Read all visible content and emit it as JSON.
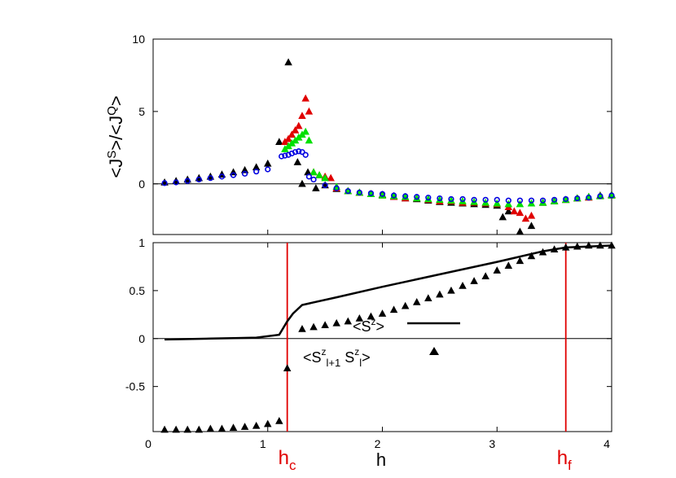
{
  "chart_data": [
    {
      "panel": "top",
      "type": "scatter",
      "ylabel": "<J^S>/<J^Q>",
      "xlim": [
        0,
        4
      ],
      "ylim": [
        -3.5,
        10
      ],
      "yticks": [
        0,
        5,
        10
      ],
      "series": [
        {
          "color": "#000000",
          "marker": "triangle",
          "points": [
            [
              0.1,
              0.1
            ],
            [
              0.2,
              0.2
            ],
            [
              0.3,
              0.3
            ],
            [
              0.4,
              0.4
            ],
            [
              0.5,
              0.5
            ],
            [
              0.6,
              0.65
            ],
            [
              0.7,
              0.8
            ],
            [
              0.8,
              0.95
            ],
            [
              0.9,
              1.15
            ],
            [
              1.0,
              1.4
            ],
            [
              1.1,
              2.9
            ],
            [
              1.18,
              8.4
            ],
            [
              1.26,
              1.5
            ],
            [
              1.3,
              0.0
            ],
            [
              1.35,
              0.8
            ],
            [
              1.42,
              -0.3
            ],
            [
              1.5,
              -0.1
            ],
            [
              1.6,
              -0.35
            ],
            [
              1.7,
              -0.5
            ],
            [
              1.8,
              -0.6
            ],
            [
              1.9,
              -0.7
            ],
            [
              2.0,
              -0.75
            ],
            [
              2.1,
              -0.85
            ],
            [
              2.2,
              -1.0
            ],
            [
              2.3,
              -1.05
            ],
            [
              2.4,
              -1.15
            ],
            [
              2.5,
              -1.25
            ],
            [
              2.6,
              -1.3
            ],
            [
              2.7,
              -1.35
            ],
            [
              2.8,
              -1.4
            ],
            [
              2.9,
              -1.45
            ],
            [
              3.0,
              -1.5
            ],
            [
              3.05,
              -2.3
            ],
            [
              3.1,
              -1.9
            ],
            [
              3.2,
              -3.3
            ],
            [
              3.3,
              -2.9
            ],
            [
              3.4,
              -1.3
            ],
            [
              3.5,
              -1.2
            ],
            [
              3.6,
              -1.1
            ],
            [
              3.7,
              -1.0
            ],
            [
              3.8,
              -0.9
            ],
            [
              3.9,
              -0.8
            ],
            [
              4.0,
              -0.75
            ]
          ]
        },
        {
          "color": "#e00000",
          "marker": "triangle",
          "points": [
            [
              1.15,
              2.9
            ],
            [
              1.18,
              3.1
            ],
            [
              1.21,
              3.4
            ],
            [
              1.24,
              3.7
            ],
            [
              1.27,
              4.0
            ],
            [
              1.3,
              4.7
            ],
            [
              1.33,
              5.9
            ],
            [
              1.36,
              5.0
            ],
            [
              1.4,
              0.8
            ],
            [
              1.45,
              0.6
            ],
            [
              1.5,
              0.5
            ],
            [
              1.55,
              0.4
            ],
            [
              1.6,
              -0.3
            ],
            [
              1.7,
              -0.5
            ],
            [
              1.8,
              -0.6
            ],
            [
              1.9,
              -0.7
            ],
            [
              2.0,
              -0.8
            ],
            [
              2.1,
              -0.9
            ],
            [
              2.2,
              -1.0
            ],
            [
              2.3,
              -1.0
            ],
            [
              2.4,
              -1.1
            ],
            [
              2.5,
              -1.2
            ],
            [
              2.6,
              -1.2
            ],
            [
              2.7,
              -1.3
            ],
            [
              2.8,
              -1.3
            ],
            [
              2.9,
              -1.35
            ],
            [
              3.0,
              -1.4
            ],
            [
              3.1,
              -1.6
            ],
            [
              3.15,
              -1.9
            ],
            [
              3.2,
              -2.0
            ],
            [
              3.25,
              -2.4
            ],
            [
              3.3,
              -2.2
            ],
            [
              3.4,
              -1.3
            ],
            [
              3.5,
              -1.2
            ],
            [
              3.6,
              -1.1
            ],
            [
              3.7,
              -1.0
            ],
            [
              3.8,
              -0.95
            ],
            [
              3.9,
              -0.85
            ],
            [
              4.0,
              -0.8
            ]
          ]
        },
        {
          "color": "#00e000",
          "marker": "triangle",
          "points": [
            [
              1.15,
              2.4
            ],
            [
              1.18,
              2.6
            ],
            [
              1.21,
              2.8
            ],
            [
              1.24,
              3.0
            ],
            [
              1.27,
              3.2
            ],
            [
              1.3,
              3.4
            ],
            [
              1.33,
              3.6
            ],
            [
              1.36,
              3.0
            ],
            [
              1.4,
              0.8
            ],
            [
              1.45,
              0.6
            ],
            [
              1.5,
              0.4
            ],
            [
              1.6,
              -0.2
            ],
            [
              1.7,
              -0.5
            ],
            [
              1.8,
              -0.6
            ],
            [
              1.9,
              -0.7
            ],
            [
              2.0,
              -0.8
            ],
            [
              2.1,
              -0.85
            ],
            [
              2.2,
              -0.9
            ],
            [
              2.3,
              -1.0
            ],
            [
              2.4,
              -1.05
            ],
            [
              2.5,
              -1.1
            ],
            [
              2.6,
              -1.15
            ],
            [
              2.7,
              -1.2
            ],
            [
              2.8,
              -1.25
            ],
            [
              2.9,
              -1.3
            ],
            [
              3.0,
              -1.35
            ],
            [
              3.1,
              -1.4
            ],
            [
              3.2,
              -1.4
            ],
            [
              3.3,
              -1.35
            ],
            [
              3.4,
              -1.3
            ],
            [
              3.5,
              -1.2
            ],
            [
              3.6,
              -1.1
            ],
            [
              3.7,
              -1.0
            ],
            [
              3.8,
              -0.9
            ],
            [
              3.9,
              -0.85
            ],
            [
              4.0,
              -0.8
            ]
          ]
        },
        {
          "color": "#0000e0",
          "marker": "circle",
          "points": [
            [
              0.1,
              0.05
            ],
            [
              0.2,
              0.1
            ],
            [
              0.3,
              0.2
            ],
            [
              0.4,
              0.3
            ],
            [
              0.5,
              0.4
            ],
            [
              0.6,
              0.5
            ],
            [
              0.7,
              0.6
            ],
            [
              0.8,
              0.7
            ],
            [
              0.9,
              0.85
            ],
            [
              1.0,
              1.0
            ],
            [
              1.12,
              1.9
            ],
            [
              1.15,
              1.95
            ],
            [
              1.18,
              2.0
            ],
            [
              1.21,
              2.1
            ],
            [
              1.24,
              2.2
            ],
            [
              1.27,
              2.25
            ],
            [
              1.3,
              2.2
            ],
            [
              1.33,
              2.0
            ],
            [
              1.36,
              0.5
            ],
            [
              1.4,
              0.3
            ],
            [
              1.5,
              -0.1
            ],
            [
              1.6,
              -0.3
            ],
            [
              1.7,
              -0.5
            ],
            [
              1.8,
              -0.6
            ],
            [
              1.9,
              -0.65
            ],
            [
              2.0,
              -0.7
            ],
            [
              2.1,
              -0.8
            ],
            [
              2.2,
              -0.85
            ],
            [
              2.3,
              -0.9
            ],
            [
              2.4,
              -0.95
            ],
            [
              2.5,
              -1.0
            ],
            [
              2.6,
              -1.05
            ],
            [
              2.7,
              -1.05
            ],
            [
              2.8,
              -1.1
            ],
            [
              2.9,
              -1.1
            ],
            [
              3.0,
              -1.1
            ],
            [
              3.1,
              -1.15
            ],
            [
              3.2,
              -1.15
            ],
            [
              3.3,
              -1.15
            ],
            [
              3.4,
              -1.15
            ],
            [
              3.5,
              -1.1
            ],
            [
              3.6,
              -1.05
            ],
            [
              3.7,
              -1.0
            ],
            [
              3.8,
              -0.95
            ],
            [
              3.9,
              -0.85
            ],
            [
              4.0,
              -0.8
            ]
          ]
        }
      ]
    },
    {
      "panel": "bottom",
      "type": "line+scatter",
      "xlabel": "h",
      "xlim": [
        0,
        4
      ],
      "ylim": [
        -0.97,
        1
      ],
      "xticks": [
        "0",
        "1",
        "2",
        "3",
        "4"
      ],
      "yticks": [
        {
          "v": -0.5,
          "label": "-0.5"
        },
        {
          "v": 0,
          "label": "0"
        },
        {
          "v": 0.5,
          "label": "0.5"
        },
        {
          "v": 1,
          "label": "1"
        }
      ],
      "vlines": [
        {
          "x": 1.17,
          "label": "h",
          "sub": "c"
        },
        {
          "x": 3.6,
          "label": "h",
          "sub": "f"
        }
      ],
      "line_series": {
        "name": "<S^z>",
        "points": [
          [
            0.1,
            -0.01
          ],
          [
            0.3,
            -0.005
          ],
          [
            0.5,
            0.0
          ],
          [
            0.7,
            0.005
          ],
          [
            0.9,
            0.01
          ],
          [
            1.1,
            0.04
          ],
          [
            1.17,
            0.18
          ],
          [
            1.22,
            0.26
          ],
          [
            1.3,
            0.35
          ],
          [
            1.6,
            0.43
          ],
          [
            2.0,
            0.54
          ],
          [
            2.5,
            0.67
          ],
          [
            3.0,
            0.8
          ],
          [
            3.4,
            0.91
          ],
          [
            3.6,
            0.95
          ],
          [
            3.8,
            0.96
          ],
          [
            4.0,
            0.97
          ]
        ]
      },
      "scatter_series": {
        "name": "<S^z_{l+1} S^z_l>",
        "points": [
          [
            0.1,
            -0.95
          ],
          [
            0.2,
            -0.95
          ],
          [
            0.3,
            -0.95
          ],
          [
            0.4,
            -0.95
          ],
          [
            0.5,
            -0.94
          ],
          [
            0.6,
            -0.94
          ],
          [
            0.7,
            -0.93
          ],
          [
            0.8,
            -0.92
          ],
          [
            0.9,
            -0.91
          ],
          [
            1.0,
            -0.89
          ],
          [
            1.1,
            -0.86
          ],
          [
            1.17,
            -0.31
          ],
          [
            1.3,
            0.1
          ],
          [
            1.4,
            0.12
          ],
          [
            1.5,
            0.14
          ],
          [
            1.6,
            0.16
          ],
          [
            1.7,
            0.18
          ],
          [
            1.8,
            0.21
          ],
          [
            1.9,
            0.23
          ],
          [
            2.0,
            0.26
          ],
          [
            2.1,
            0.3
          ],
          [
            2.2,
            0.34
          ],
          [
            2.3,
            0.38
          ],
          [
            2.4,
            0.42
          ],
          [
            2.5,
            0.46
          ],
          [
            2.6,
            0.5
          ],
          [
            2.7,
            0.55
          ],
          [
            2.8,
            0.6
          ],
          [
            2.9,
            0.65
          ],
          [
            3.0,
            0.71
          ],
          [
            3.1,
            0.76
          ],
          [
            3.2,
            0.81
          ],
          [
            3.3,
            0.86
          ],
          [
            3.4,
            0.9
          ],
          [
            3.5,
            0.93
          ],
          [
            3.6,
            0.95
          ],
          [
            3.7,
            0.96
          ],
          [
            3.8,
            0.97
          ],
          [
            3.9,
            0.97
          ],
          [
            4.0,
            0.97
          ]
        ]
      }
    }
  ]
}
